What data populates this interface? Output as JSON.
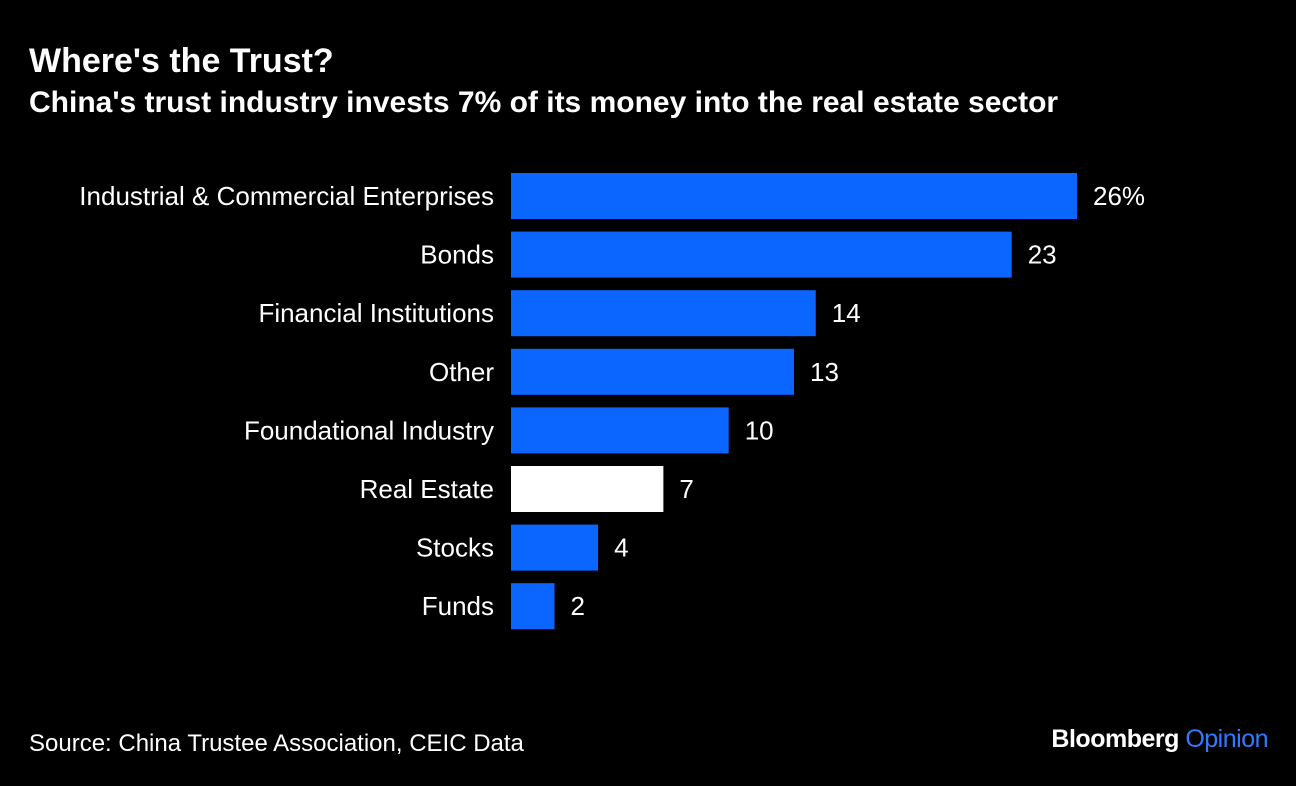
{
  "header": {
    "title": "Where's the Trust?",
    "subtitle": "China's trust industry invests 7% of its money into the real estate sector"
  },
  "chart_data": {
    "type": "bar",
    "orientation": "horizontal",
    "categories": [
      "Industrial & Commercial Enterprises",
      "Bonds",
      "Financial Institutions",
      "Other",
      "Foundational Industry",
      "Real Estate",
      "Stocks",
      "Funds"
    ],
    "values": [
      26,
      23,
      14,
      13,
      10,
      7,
      4,
      2
    ],
    "value_labels": [
      "26%",
      "23",
      "14",
      "13",
      "10",
      "7",
      "4",
      "2"
    ],
    "highlight_category": "Real Estate",
    "xlim": [
      0,
      26
    ],
    "grid": false,
    "colors": {
      "bar": "#0b66ff",
      "highlight": "#ffffff",
      "text": "#ffffff",
      "background": "#000000"
    }
  },
  "footer": {
    "source": "Source: China Trustee Association, CEIC Data",
    "logo_brand": "Bloomberg",
    "logo_opinion": "Opinion"
  }
}
